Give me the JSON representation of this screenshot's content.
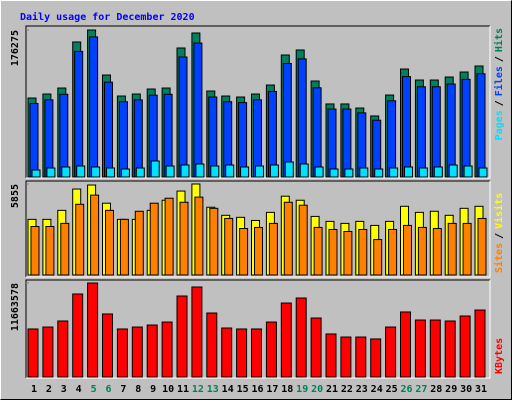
{
  "chart_data": [
    {
      "type": "bar",
      "title": "Daily usage for December 2020",
      "separator": "/",
      "ylim": [
        0,
        176275
      ],
      "yticks": [
        176275
      ],
      "series": [
        {
          "name": "Hits",
          "color": "#00805c",
          "values": [
            94700,
            99500,
            106700,
            161900,
            176275,
            122300,
            97100,
            99500,
            105500,
            106700,
            154700,
            172700,
            103100,
            97100,
            95900,
            99500,
            110300,
            146300,
            152300,
            115100,
            87600,
            87600,
            82700,
            73200,
            98300,
            129500,
            116300,
            116300,
            119900,
            125900,
            133100
          ]
        },
        {
          "name": "Files",
          "color": "#0040ff",
          "values": [
            88100,
            92500,
            99200,
            150600,
            168000,
            113700,
            90300,
            92500,
            98100,
            99200,
            143900,
            160600,
            95900,
            90300,
            89200,
            92500,
            102600,
            136100,
            141600,
            107000,
            81500,
            81500,
            76900,
            68100,
            91400,
            120400,
            108200,
            108200,
            111500,
            117100,
            123800
          ]
        },
        {
          "name": "Pages",
          "color": "#00e0ff",
          "values": [
            8400,
            10800,
            12000,
            13200,
            12000,
            10800,
            9600,
            10800,
            19200,
            13200,
            14400,
            15600,
            13200,
            14400,
            12000,
            13200,
            14400,
            18000,
            15600,
            12000,
            9600,
            9600,
            10800,
            9600,
            10800,
            12000,
            10800,
            12000,
            14400,
            13200,
            10800
          ]
        }
      ]
    },
    {
      "type": "bar",
      "separator": "/",
      "ylim": [
        0,
        5855
      ],
      "yticks": [
        5855
      ],
      "series": [
        {
          "name": "Visits",
          "color": "#ffff00",
          "values": [
            3580,
            3580,
            4160,
            5530,
            5790,
            4620,
            3580,
            3580,
            4160,
            4810,
            5400,
            5855,
            4360,
            3840,
            3710,
            3510,
            4030,
            5070,
            4810,
            3770,
            3450,
            3320,
            3450,
            3190,
            3450,
            4420,
            4030,
            4100,
            3840,
            4290,
            4420
          ]
        },
        {
          "name": "Sites",
          "color": "#ff8000",
          "values": [
            3120,
            3120,
            3320,
            4550,
            5140,
            4160,
            3580,
            4100,
            4620,
            4940,
            4680,
            5010,
            4290,
            3640,
            2990,
            3060,
            3320,
            4680,
            4490,
            3060,
            2930,
            2800,
            2930,
            2280,
            2930,
            3190,
            3060,
            2990,
            3320,
            3320,
            3640
          ]
        }
      ]
    },
    {
      "type": "bar",
      "ylim": [
        0,
        11663578
      ],
      "yticks": [
        11663578
      ],
      "categories": [
        "1",
        "2",
        "3",
        "4",
        "5",
        "6",
        "7",
        "8",
        "9",
        "10",
        "11",
        "12",
        "13",
        "14",
        "15",
        "16",
        "17",
        "18",
        "19",
        "20",
        "21",
        "22",
        "23",
        "24",
        "25",
        "26",
        "27",
        "28",
        "29",
        "30",
        "31"
      ],
      "category_color": "#000000",
      "highlight_color": "#00805c",
      "highlight_indices": [
        4,
        5,
        11,
        12,
        18,
        19,
        25,
        26
      ],
      "series": [
        {
          "name": "KBytes",
          "color": "#ff0000",
          "values": [
            5960000,
            6200000,
            6950000,
            10300000,
            11663578,
            7820000,
            5960000,
            6200000,
            6450000,
            6820000,
            10050000,
            11170000,
            7940000,
            6080000,
            5960000,
            5960000,
            6820000,
            9180000,
            9800000,
            7320000,
            5340000,
            4960000,
            4960000,
            4720000,
            6200000,
            8070000,
            7070000,
            7070000,
            6950000,
            7570000,
            8310000
          ]
        }
      ]
    }
  ]
}
